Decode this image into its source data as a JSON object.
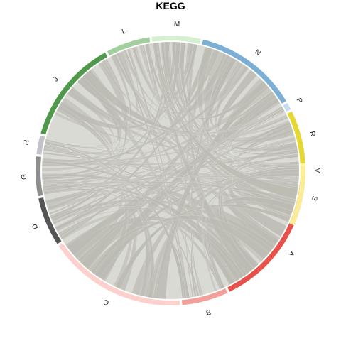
{
  "chart_data": {
    "type": "chord",
    "title": "KEGG",
    "segments": [
      {
        "label": "V",
        "color": "#fdf5b0",
        "start": -4,
        "end": 4
      },
      {
        "label": "A",
        "color": "#e8504a",
        "start": 5,
        "end": 64
      },
      {
        "label": "B",
        "color": "#f4a09a",
        "start": 65,
        "end": 85
      },
      {
        "label": "C",
        "color": "#fcd0cc",
        "start": 86,
        "end": 146
      },
      {
        "label": "D",
        "color": "#555555",
        "start": 147,
        "end": 168
      },
      {
        "label": "G",
        "color": "#8e8e8e",
        "start": 169,
        "end": 186
      },
      {
        "label": "H",
        "color": "#c2c2c8",
        "start": 187,
        "end": 195
      },
      {
        "label": "J",
        "color": "#4e9a4a",
        "start": 196,
        "end": 241
      },
      {
        "label": "L",
        "color": "#a3cf9e",
        "start": 242,
        "end": 261
      },
      {
        "label": "M",
        "color": "#d6efd0",
        "start": 262,
        "end": 283
      },
      {
        "label": "N",
        "color": "#7bafd6",
        "start": 284,
        "end": 329
      },
      {
        "label": "P",
        "color": "#c5dcef",
        "start": 330,
        "end": 333
      },
      {
        "label": "R",
        "color": "#e5d832",
        "start": 334,
        "end": 357
      },
      {
        "label": "S",
        "color": "#fbed98",
        "start": 358,
        "end": 384
      }
    ],
    "link_color": "#bcbbb3"
  }
}
